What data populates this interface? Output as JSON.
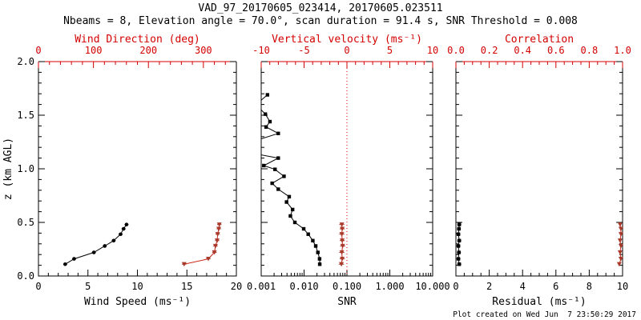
{
  "title": "VAD_97_20170605_023414, 20170605.023511",
  "subtitle": "Nbeams = 8, Elevation angle = 70.0°, scan duration = 91.4 s, SNR Threshold = 0.008",
  "footer": "Plot created on Wed Jun  7 23:50:29 2017",
  "ylabel": "z (km AGL)",
  "y_ticks": [
    "0.0",
    "0.5",
    "1.0",
    "1.5",
    "2.0"
  ],
  "colors": {
    "red": "#d40000",
    "red_line": "#cc2418",
    "red_marker": "#a93a2c",
    "black": "#000000",
    "background": "#ffffff"
  },
  "chart_data": [
    {
      "type": "line",
      "panel": "wind",
      "ylim": [
        0,
        2
      ],
      "x_bottom": {
        "label": "Wind Speed (ms⁻¹)",
        "lim": [
          0,
          20
        ],
        "ticks": [
          0,
          5,
          10,
          15,
          20
        ],
        "tick_labels": [
          "0",
          "5",
          "10",
          "15",
          "20"
        ],
        "minor_step": 1
      },
      "x_top": {
        "label": "Wind Direction (deg)",
        "lim": [
          0,
          360
        ],
        "ticks": [
          0,
          100,
          200,
          300
        ],
        "tick_labels": [
          "0",
          "100",
          "200",
          "300"
        ],
        "minor_step": 20
      },
      "series": [
        {
          "name": "wind_speed",
          "axis": "bottom",
          "color": "black",
          "marker": "circle",
          "xerr": 0.2,
          "z": [
            0.11,
            0.16,
            0.22,
            0.28,
            0.33,
            0.39,
            0.44,
            0.48
          ],
          "values": [
            2.7,
            3.6,
            5.6,
            6.7,
            7.6,
            8.3,
            8.6,
            8.9
          ]
        },
        {
          "name": "wind_direction",
          "axis": "top",
          "color": "red",
          "marker": "triangle",
          "xerr": 4,
          "z": [
            0.11,
            0.16,
            0.22,
            0.28,
            0.33,
            0.39,
            0.44,
            0.48
          ],
          "values": [
            265,
            309,
            320,
            322,
            325,
            326,
            328,
            329
          ]
        }
      ]
    },
    {
      "type": "line",
      "panel": "snr",
      "ylim": [
        0,
        2
      ],
      "x_bottom": {
        "label": "SNR",
        "scale": "log",
        "lim": [
          0.001,
          10
        ],
        "ticks": [
          0.001,
          0.01,
          0.1,
          1,
          10
        ],
        "tick_labels": [
          "0.001",
          "0.010",
          "0.100",
          "1.000",
          "10.000"
        ]
      },
      "x_top": {
        "label": "Vertical velocity (ms⁻¹)",
        "lim": [
          -10,
          10
        ],
        "ticks": [
          -10,
          -5,
          0,
          5,
          10
        ],
        "tick_labels": [
          "-10",
          "-5",
          "0",
          "5",
          "10"
        ],
        "minor_step": 1
      },
      "refline": {
        "axis": "top",
        "value": 0,
        "color": "red",
        "style": "dotted"
      },
      "series": [
        {
          "name": "snr",
          "axis": "bottom",
          "color": "black",
          "marker": "square",
          "points": [
            [
              1.69,
              0.0014
            ],
            [
              1.64,
              0.001,
              "clip"
            ],
            [
              1.55,
              0.001,
              "clip"
            ],
            [
              1.51,
              0.00125
            ],
            [
              1.44,
              0.0016
            ],
            [
              1.39,
              0.0013
            ],
            [
              1.33,
              0.0025
            ],
            [
              1.28,
              0.001,
              "clip"
            ],
            [
              1.13,
              0.001,
              "clip"
            ],
            [
              1.1,
              0.0025
            ],
            [
              1.03,
              0.00115
            ],
            [
              0.995,
              0.0021
            ],
            [
              0.93,
              0.0034
            ],
            [
              0.865,
              0.0018
            ],
            [
              0.81,
              0.0025
            ],
            [
              0.74,
              0.0045
            ],
            [
              0.69,
              0.0039
            ],
            [
              0.62,
              0.0054
            ],
            [
              0.56,
              0.0048
            ],
            [
              0.5,
              0.0061
            ],
            [
              0.44,
              0.0098
            ],
            [
              0.39,
              0.0125
            ],
            [
              0.33,
              0.016
            ],
            [
              0.28,
              0.0187
            ],
            [
              0.22,
              0.021
            ],
            [
              0.16,
              0.023
            ],
            [
              0.11,
              0.0232
            ]
          ]
        },
        {
          "name": "vertical_velocity",
          "axis": "top",
          "color": "red",
          "marker": "triangle",
          "xerr": 0.3,
          "z": [
            0.11,
            0.16,
            0.22,
            0.28,
            0.33,
            0.39,
            0.44,
            0.48
          ],
          "values": [
            -0.65,
            -0.55,
            -0.6,
            -0.5,
            -0.55,
            -0.6,
            -0.55,
            -0.6
          ]
        }
      ]
    },
    {
      "type": "line",
      "panel": "residual",
      "ylim": [
        0,
        2
      ],
      "x_bottom": {
        "label": "Residual (ms⁻¹)",
        "lim": [
          0,
          10
        ],
        "ticks": [
          0,
          2,
          4,
          6,
          8,
          10
        ],
        "tick_labels": [
          "0",
          "2",
          "4",
          "6",
          "8",
          "10"
        ],
        "minor_step": 0.5
      },
      "x_top": {
        "label": "Correlation",
        "lim": [
          0,
          1
        ],
        "ticks": [
          0,
          0.2,
          0.4,
          0.6,
          0.8,
          1
        ],
        "tick_labels": [
          "0.0",
          "0.2",
          "0.4",
          "0.6",
          "0.8",
          "1.0"
        ],
        "minor_step": 0.05
      },
      "series": [
        {
          "name": "residual",
          "axis": "bottom",
          "color": "black",
          "marker": "square",
          "xerr": 0.12,
          "z": [
            0.11,
            0.16,
            0.22,
            0.28,
            0.33,
            0.39,
            0.44,
            0.48
          ],
          "values": [
            0.2,
            0.15,
            0.18,
            0.15,
            0.2,
            0.15,
            0.18,
            0.2
          ]
        },
        {
          "name": "correlation",
          "axis": "top",
          "color": "red",
          "marker": "triangle",
          "xerr": 0.006,
          "z": [
            0.11,
            0.16,
            0.22,
            0.28,
            0.33,
            0.39,
            0.44,
            0.48
          ],
          "values": [
            0.98,
            0.99,
            0.985,
            0.99,
            0.985,
            0.99,
            0.99,
            0.985
          ]
        }
      ]
    }
  ]
}
